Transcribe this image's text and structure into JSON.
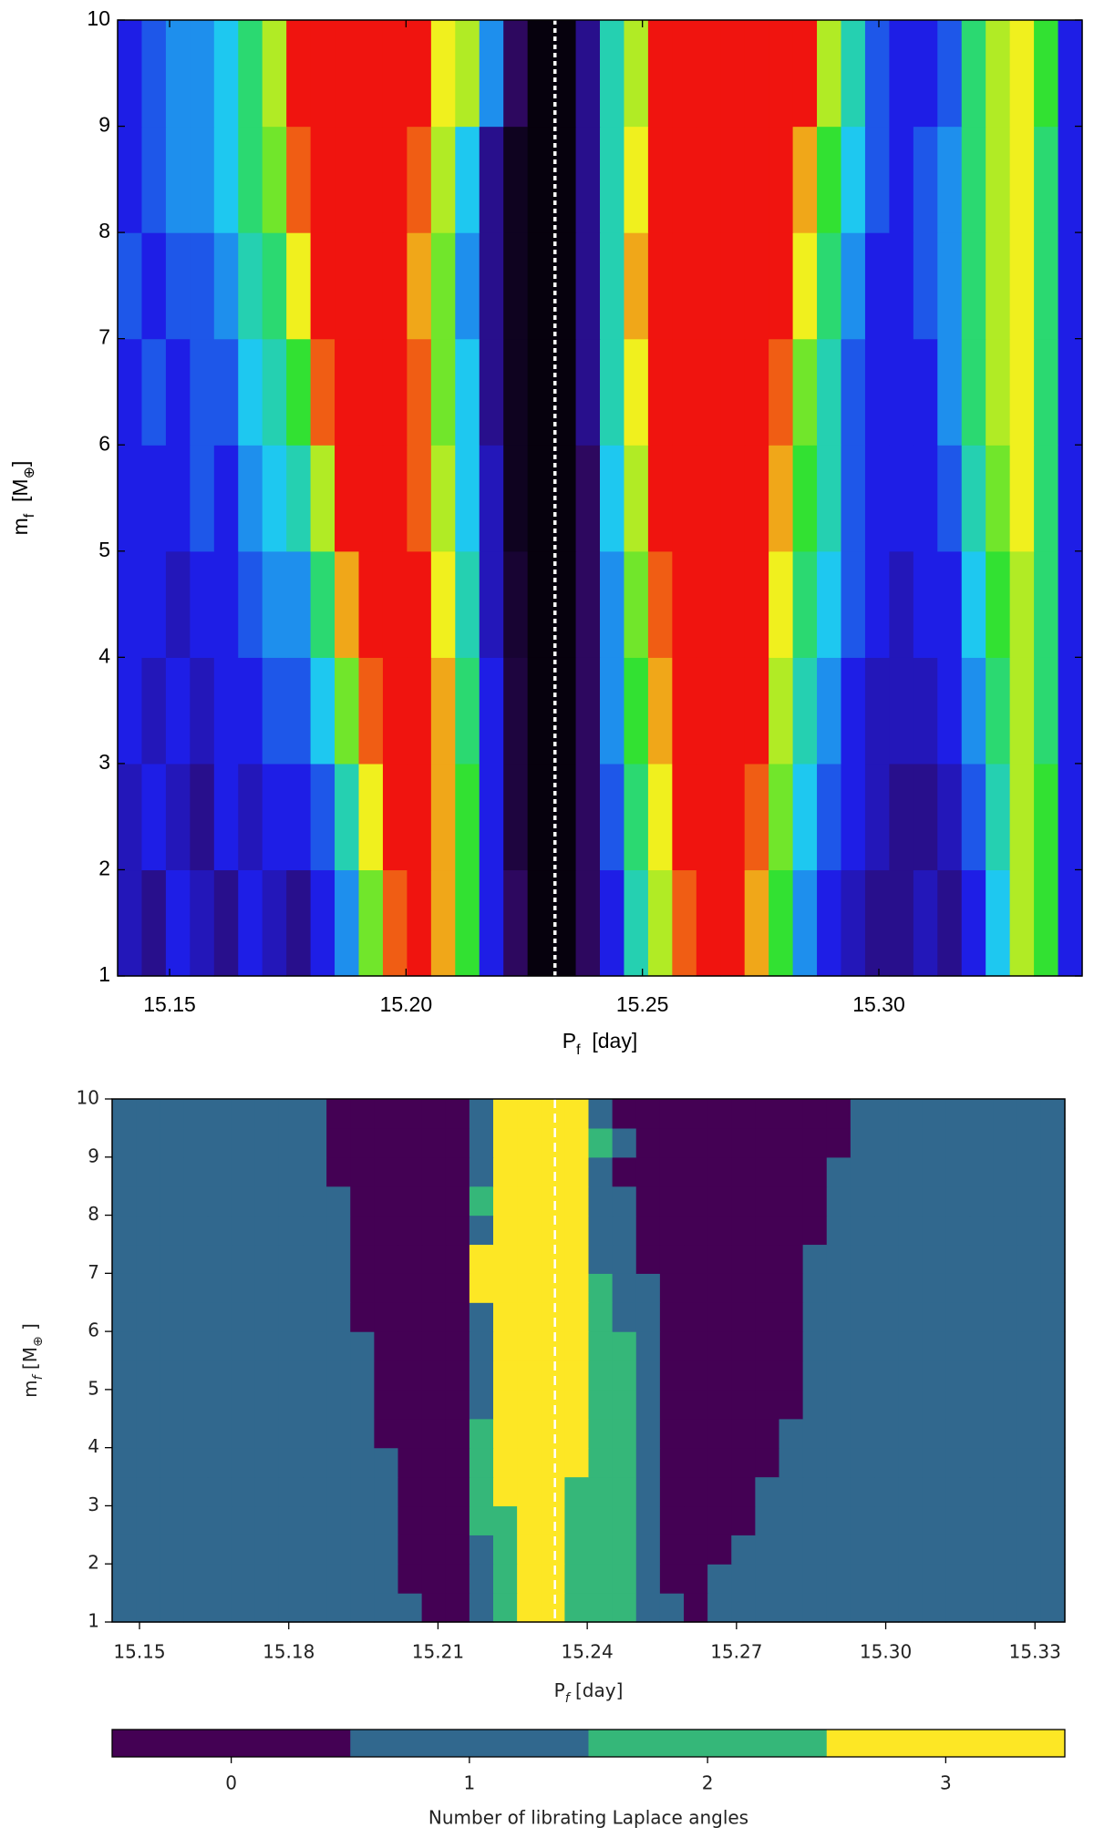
{
  "chart_data": [
    {
      "type": "heatmap",
      "xlabel": [
        {
          "text": "P"
        },
        {
          "text": "f",
          "sub": true
        },
        {
          "text": "  [day]"
        }
      ],
      "ylabel": [
        {
          "text": "m"
        },
        {
          "text": "f",
          "sub": true
        },
        {
          "text": "  [M"
        },
        {
          "text": "⊕",
          "sub": true
        },
        {
          "text": "]"
        }
      ],
      "xlim": [
        15.139,
        15.343
      ],
      "ylim": [
        1,
        10
      ],
      "xticks": [
        15.15,
        {
          "value": 15.2,
          "label": "15.20"
        },
        15.25,
        {
          "value": 15.3,
          "label": "15.30"
        }
      ],
      "yticks": [
        1,
        2,
        3,
        4,
        5,
        6,
        7,
        8,
        9,
        10
      ],
      "colormap": "nipy_spectral",
      "clim": [
        0,
        1
      ],
      "vline": 15.2315,
      "z": [
        [
          0.25,
          0.2,
          0.3,
          0.25,
          0.2,
          0.3,
          0.25,
          0.2,
          0.3,
          0.4,
          0.65,
          0.85,
          0.9,
          0.8,
          0.6,
          0.3,
          0.15,
          0.02,
          0.02,
          0.15,
          0.3,
          0.5,
          0.7,
          0.85,
          0.9,
          0.9,
          0.8,
          0.6,
          0.4,
          0.3,
          0.25,
          0.2,
          0.2,
          0.25,
          0.2,
          0.3,
          0.45,
          0.7,
          0.6,
          0.3
        ],
        [
          0.25,
          0.3,
          0.25,
          0.2,
          0.3,
          0.25,
          0.3,
          0.3,
          0.35,
          0.5,
          0.75,
          0.9,
          0.9,
          0.8,
          0.6,
          0.3,
          0.1,
          0.02,
          0.02,
          0.15,
          0.35,
          0.55,
          0.75,
          0.9,
          0.9,
          0.9,
          0.85,
          0.65,
          0.45,
          0.35,
          0.3,
          0.25,
          0.2,
          0.2,
          0.25,
          0.35,
          0.5,
          0.7,
          0.6,
          0.3
        ],
        [
          0.3,
          0.25,
          0.3,
          0.25,
          0.3,
          0.3,
          0.35,
          0.35,
          0.45,
          0.65,
          0.85,
          0.9,
          0.9,
          0.8,
          0.55,
          0.3,
          0.1,
          0.02,
          0.02,
          0.15,
          0.4,
          0.6,
          0.8,
          0.9,
          0.9,
          0.9,
          0.9,
          0.7,
          0.5,
          0.4,
          0.3,
          0.25,
          0.25,
          0.25,
          0.3,
          0.4,
          0.55,
          0.7,
          0.55,
          0.3
        ],
        [
          0.3,
          0.3,
          0.25,
          0.3,
          0.3,
          0.35,
          0.4,
          0.4,
          0.55,
          0.8,
          0.9,
          0.9,
          0.9,
          0.75,
          0.5,
          0.25,
          0.08,
          0.02,
          0.02,
          0.15,
          0.4,
          0.65,
          0.85,
          0.9,
          0.9,
          0.9,
          0.9,
          0.75,
          0.55,
          0.45,
          0.35,
          0.3,
          0.25,
          0.3,
          0.3,
          0.45,
          0.6,
          0.7,
          0.55,
          0.3
        ],
        [
          0.3,
          0.3,
          0.3,
          0.35,
          0.3,
          0.4,
          0.45,
          0.5,
          0.7,
          0.9,
          0.9,
          0.9,
          0.85,
          0.7,
          0.45,
          0.25,
          0.05,
          0.02,
          0.02,
          0.15,
          0.45,
          0.7,
          0.9,
          0.9,
          0.9,
          0.9,
          0.9,
          0.8,
          0.6,
          0.5,
          0.35,
          0.3,
          0.3,
          0.3,
          0.35,
          0.5,
          0.65,
          0.75,
          0.55,
          0.3
        ],
        [
          0.3,
          0.35,
          0.3,
          0.35,
          0.35,
          0.45,
          0.5,
          0.6,
          0.85,
          0.9,
          0.9,
          0.9,
          0.85,
          0.65,
          0.45,
          0.2,
          0.05,
          0.02,
          0.02,
          0.2,
          0.5,
          0.75,
          0.9,
          0.9,
          0.9,
          0.9,
          0.9,
          0.85,
          0.65,
          0.5,
          0.35,
          0.3,
          0.3,
          0.3,
          0.4,
          0.55,
          0.7,
          0.75,
          0.55,
          0.3
        ],
        [
          0.35,
          0.3,
          0.35,
          0.35,
          0.4,
          0.5,
          0.55,
          0.75,
          0.9,
          0.9,
          0.9,
          0.9,
          0.8,
          0.65,
          0.4,
          0.2,
          0.05,
          0.02,
          0.02,
          0.2,
          0.5,
          0.8,
          0.9,
          0.9,
          0.9,
          0.9,
          0.9,
          0.9,
          0.75,
          0.55,
          0.4,
          0.3,
          0.3,
          0.35,
          0.4,
          0.55,
          0.7,
          0.75,
          0.55,
          0.3
        ],
        [
          0.3,
          0.35,
          0.4,
          0.4,
          0.45,
          0.55,
          0.65,
          0.85,
          0.9,
          0.9,
          0.9,
          0.9,
          0.85,
          0.7,
          0.45,
          0.2,
          0.05,
          0.02,
          0.02,
          0.2,
          0.5,
          0.75,
          0.9,
          0.9,
          0.9,
          0.9,
          0.9,
          0.9,
          0.8,
          0.6,
          0.45,
          0.35,
          0.3,
          0.35,
          0.4,
          0.55,
          0.7,
          0.75,
          0.55,
          0.3
        ],
        [
          0.3,
          0.35,
          0.4,
          0.4,
          0.45,
          0.55,
          0.7,
          0.9,
          0.9,
          0.9,
          0.9,
          0.9,
          0.9,
          0.75,
          0.7,
          0.4,
          0.15,
          0.02,
          0.02,
          0.2,
          0.5,
          0.7,
          0.9,
          0.9,
          0.9,
          0.9,
          0.9,
          0.9,
          0.9,
          0.7,
          0.5,
          0.35,
          0.3,
          0.3,
          0.35,
          0.55,
          0.7,
          0.75,
          0.6,
          0.3
        ]
      ]
    },
    {
      "type": "heatmap",
      "xlabel": [
        {
          "text": "P"
        },
        {
          "text": "f",
          "sub": true,
          "italic": true
        },
        {
          "text": " [day]"
        }
      ],
      "ylabel": [
        {
          "text": "m"
        },
        {
          "text": "f",
          "sub": true,
          "italic": true
        },
        {
          "text": " [M"
        },
        {
          "text": "⊕",
          "sub": true
        },
        {
          "text": " ]"
        }
      ],
      "xlim": [
        15.1445,
        15.336
      ],
      "ylim": [
        1,
        10
      ],
      "xticks": [
        15.15,
        15.18,
        15.21,
        15.24,
        15.27,
        {
          "value": 15.3,
          "label": "15.30"
        },
        15.33
      ],
      "yticks": [
        1,
        2,
        3,
        4,
        5,
        6,
        7,
        8,
        9,
        10
      ],
      "vline": 15.2335,
      "colorbar": {
        "label": "Number of librating Laplace angles",
        "categories": [
          0,
          1,
          2,
          3
        ],
        "colors": [
          "#440154",
          "#31688e",
          "#35b779",
          "#fde725"
        ]
      },
      "z": [
        [
          1,
          1,
          1,
          1,
          1,
          1,
          1,
          1,
          1,
          1,
          1,
          1,
          1,
          0,
          0,
          1,
          2,
          3,
          3,
          2,
          2,
          2,
          1,
          1,
          0,
          1,
          1,
          1,
          1,
          1,
          1,
          1,
          1,
          1,
          1,
          1,
          1,
          1,
          1,
          1
        ],
        [
          1,
          1,
          1,
          1,
          1,
          1,
          1,
          1,
          1,
          1,
          1,
          1,
          0,
          0,
          0,
          1,
          2,
          3,
          3,
          2,
          2,
          2,
          1,
          0,
          0,
          1,
          1,
          1,
          1,
          1,
          1,
          1,
          1,
          1,
          1,
          1,
          1,
          1,
          1,
          1
        ],
        [
          1,
          1,
          1,
          1,
          1,
          1,
          1,
          1,
          1,
          1,
          1,
          1,
          0,
          0,
          0,
          1,
          2,
          3,
          3,
          2,
          2,
          2,
          1,
          0,
          0,
          0,
          1,
          1,
          1,
          1,
          1,
          1,
          1,
          1,
          1,
          1,
          1,
          1,
          1,
          1
        ],
        [
          1,
          1,
          1,
          1,
          1,
          1,
          1,
          1,
          1,
          1,
          1,
          1,
          0,
          0,
          0,
          2,
          2,
          3,
          3,
          2,
          2,
          2,
          1,
          0,
          0,
          0,
          0,
          1,
          1,
          1,
          1,
          1,
          1,
          1,
          1,
          1,
          1,
          1,
          1,
          1
        ],
        [
          1,
          1,
          1,
          1,
          1,
          1,
          1,
          1,
          1,
          1,
          1,
          1,
          0,
          0,
          0,
          2,
          3,
          3,
          3,
          2,
          2,
          2,
          1,
          0,
          0,
          0,
          0,
          1,
          1,
          1,
          1,
          1,
          1,
          1,
          1,
          1,
          1,
          1,
          1,
          1
        ],
        [
          1,
          1,
          1,
          1,
          1,
          1,
          1,
          1,
          1,
          1,
          1,
          1,
          0,
          0,
          0,
          2,
          3,
          3,
          3,
          3,
          2,
          2,
          1,
          0,
          0,
          0,
          0,
          0,
          1,
          1,
          1,
          1,
          1,
          1,
          1,
          1,
          1,
          1,
          1,
          1
        ],
        [
          1,
          1,
          1,
          1,
          1,
          1,
          1,
          1,
          1,
          1,
          1,
          0,
          0,
          0,
          0,
          2,
          3,
          3,
          3,
          3,
          2,
          2,
          1,
          0,
          0,
          0,
          0,
          0,
          1,
          1,
          1,
          1,
          1,
          1,
          1,
          1,
          1,
          1,
          1,
          1
        ],
        [
          1,
          1,
          1,
          1,
          1,
          1,
          1,
          1,
          1,
          1,
          1,
          0,
          0,
          0,
          0,
          1,
          3,
          3,
          3,
          3,
          2,
          2,
          1,
          0,
          0,
          0,
          0,
          0,
          0,
          1,
          1,
          1,
          1,
          1,
          1,
          1,
          1,
          1,
          1,
          1
        ],
        [
          1,
          1,
          1,
          1,
          1,
          1,
          1,
          1,
          1,
          1,
          1,
          0,
          0,
          0,
          0,
          1,
          3,
          3,
          3,
          3,
          2,
          2,
          1,
          0,
          0,
          0,
          0,
          0,
          0,
          1,
          1,
          1,
          1,
          1,
          1,
          1,
          1,
          1,
          1,
          1
        ],
        [
          1,
          1,
          1,
          1,
          1,
          1,
          1,
          1,
          1,
          1,
          1,
          0,
          0,
          0,
          0,
          1,
          3,
          3,
          3,
          3,
          2,
          2,
          1,
          0,
          0,
          0,
          0,
          0,
          0,
          1,
          1,
          1,
          1,
          1,
          1,
          1,
          1,
          1,
          1,
          1
        ],
        [
          1,
          1,
          1,
          1,
          1,
          1,
          1,
          1,
          1,
          1,
          0,
          0,
          0,
          0,
          0,
          1,
          3,
          3,
          3,
          3,
          2,
          1,
          1,
          0,
          0,
          0,
          0,
          0,
          0,
          1,
          1,
          1,
          1,
          1,
          1,
          1,
          1,
          1,
          1,
          1
        ],
        [
          1,
          1,
          1,
          1,
          1,
          1,
          1,
          1,
          1,
          1,
          0,
          0,
          0,
          0,
          0,
          3,
          3,
          3,
          3,
          3,
          2,
          1,
          1,
          0,
          0,
          0,
          0,
          0,
          0,
          1,
          1,
          1,
          1,
          1,
          1,
          1,
          1,
          1,
          1,
          1
        ],
        [
          1,
          1,
          1,
          1,
          1,
          1,
          1,
          1,
          1,
          1,
          0,
          0,
          0,
          0,
          0,
          3,
          3,
          3,
          3,
          3,
          1,
          1,
          0,
          0,
          0,
          0,
          0,
          0,
          0,
          1,
          1,
          1,
          1,
          1,
          1,
          1,
          1,
          1,
          1,
          1
        ],
        [
          1,
          1,
          1,
          1,
          1,
          1,
          1,
          1,
          1,
          1,
          0,
          0,
          0,
          0,
          0,
          1,
          3,
          3,
          3,
          3,
          1,
          1,
          0,
          0,
          0,
          0,
          0,
          0,
          0,
          0,
          1,
          1,
          1,
          1,
          1,
          1,
          1,
          1,
          1,
          1
        ],
        [
          1,
          1,
          1,
          1,
          1,
          1,
          1,
          1,
          1,
          1,
          0,
          0,
          0,
          0,
          0,
          2,
          3,
          3,
          3,
          3,
          1,
          1,
          0,
          0,
          0,
          0,
          0,
          0,
          0,
          0,
          1,
          1,
          1,
          1,
          1,
          1,
          1,
          1,
          1,
          1
        ],
        [
          1,
          1,
          1,
          1,
          1,
          1,
          1,
          1,
          1,
          0,
          0,
          0,
          0,
          0,
          0,
          1,
          3,
          3,
          3,
          3,
          1,
          0,
          0,
          0,
          0,
          0,
          0,
          0,
          0,
          0,
          1,
          1,
          1,
          1,
          1,
          1,
          1,
          1,
          1,
          1
        ],
        [
          1,
          1,
          1,
          1,
          1,
          1,
          1,
          1,
          1,
          0,
          0,
          0,
          0,
          0,
          0,
          1,
          3,
          3,
          3,
          3,
          2,
          1,
          0,
          0,
          0,
          0,
          0,
          0,
          0,
          0,
          0,
          1,
          1,
          1,
          1,
          1,
          1,
          1,
          1,
          1
        ],
        [
          1,
          1,
          1,
          1,
          1,
          1,
          1,
          1,
          1,
          0,
          0,
          0,
          0,
          0,
          0,
          1,
          3,
          3,
          3,
          3,
          1,
          0,
          0,
          0,
          0,
          0,
          0,
          0,
          0,
          0,
          0,
          1,
          1,
          1,
          1,
          1,
          1,
          1,
          1,
          1
        ]
      ]
    }
  ]
}
